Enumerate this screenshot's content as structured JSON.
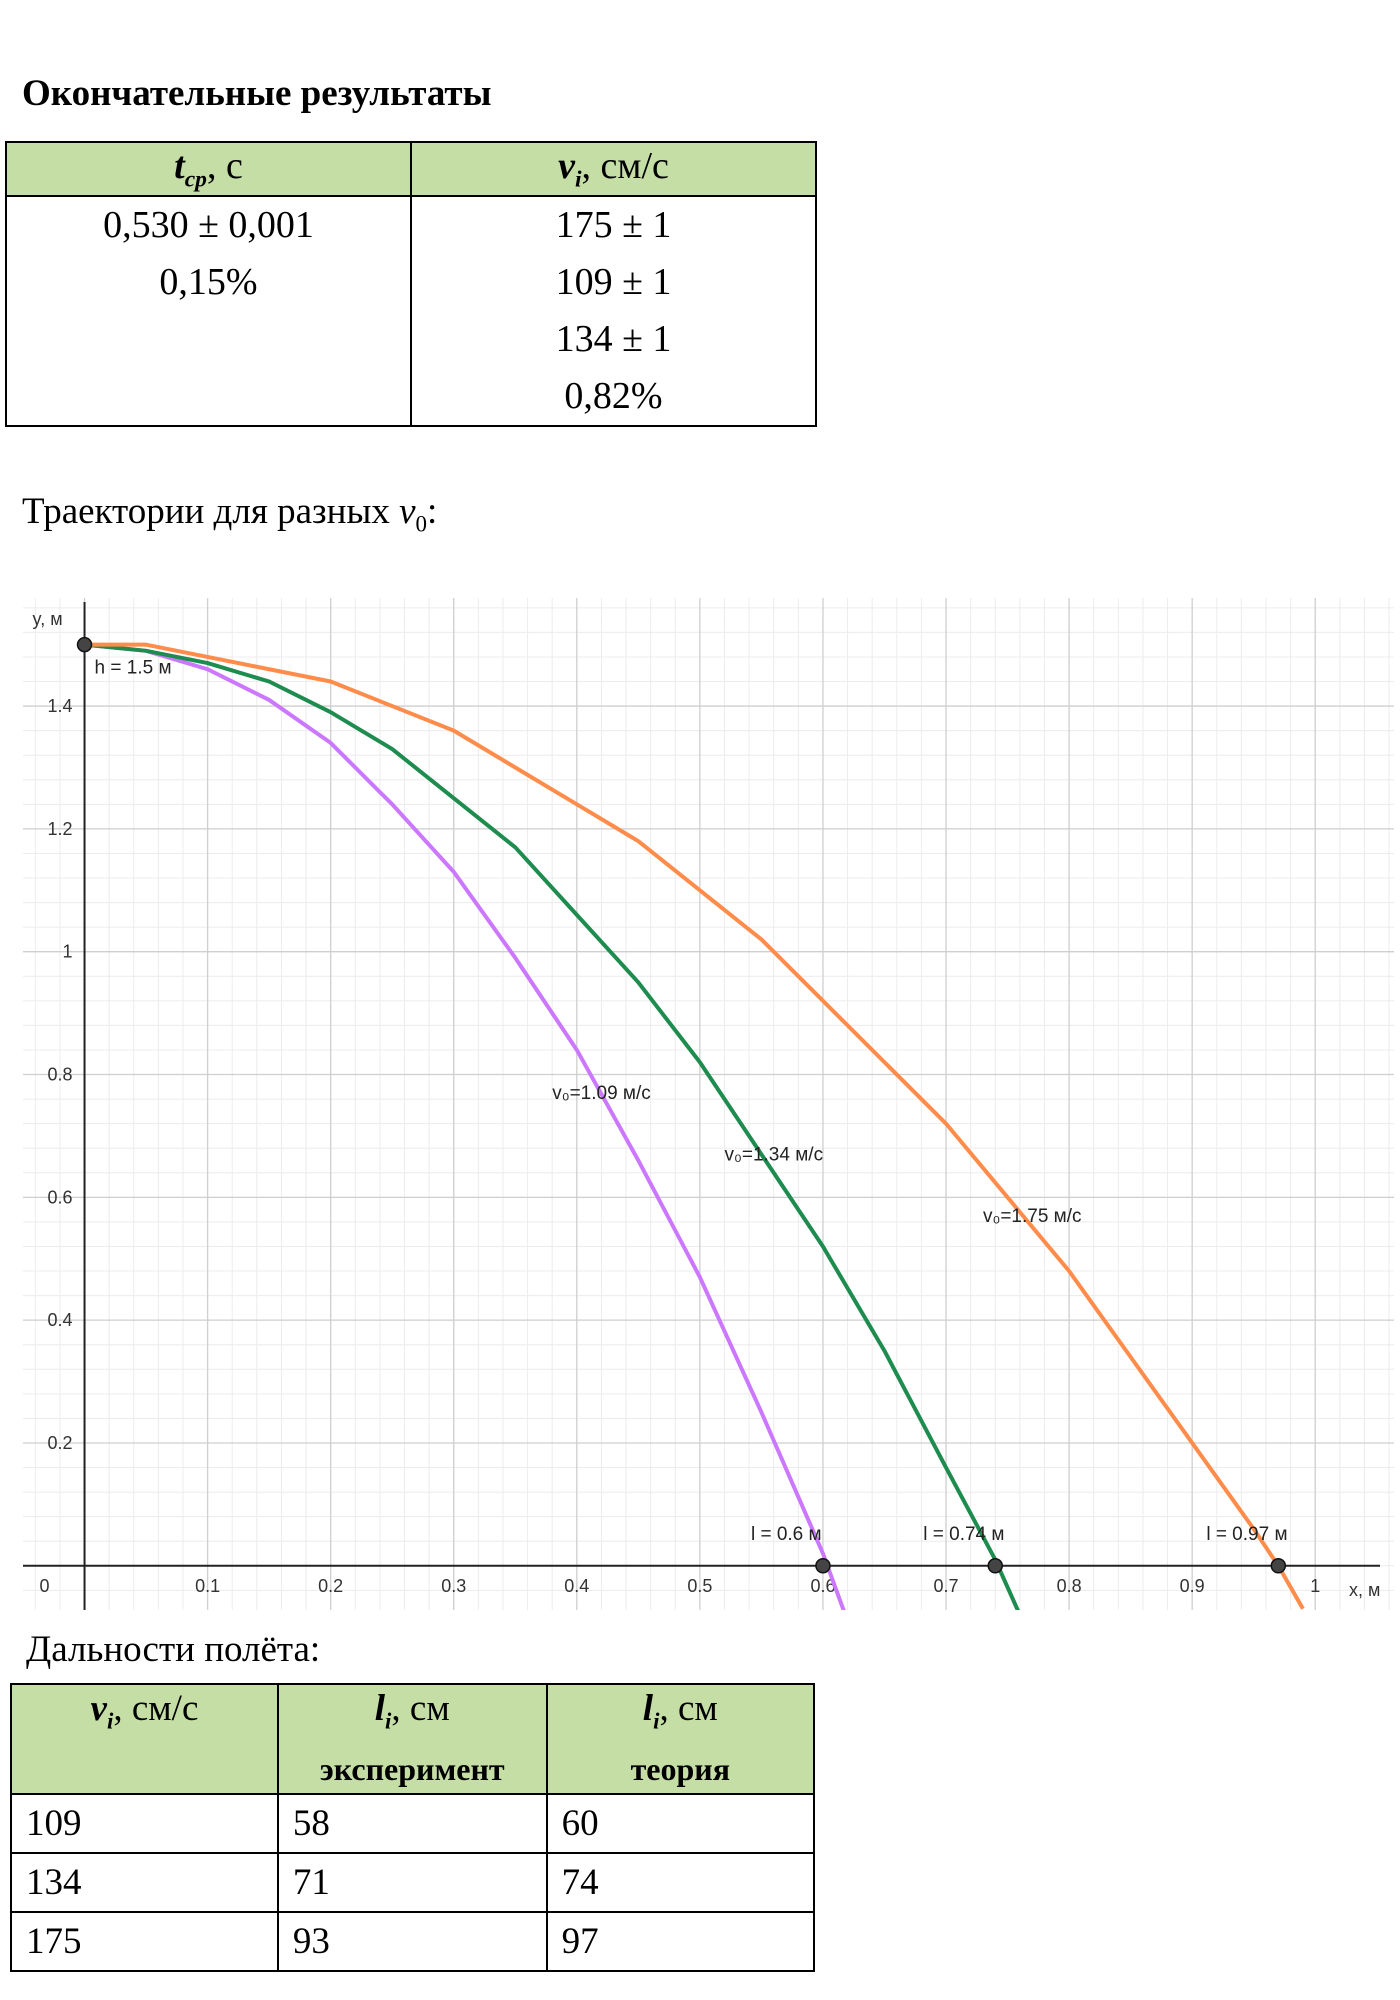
{
  "heading": "Окончательные результаты",
  "table1": {
    "header": [
      {
        "symbol": "t",
        "sub": "cp",
        "unit": ", с"
      },
      {
        "symbol": "v",
        "sub": "i",
        "unit": ", см/с"
      }
    ],
    "columns": [
      [
        "0,530 ± 0,001",
        "0,15%"
      ],
      [
        "175 ± 1",
        "109 ± 1",
        "134 ± 1",
        "0,82%"
      ]
    ]
  },
  "trajectories_caption": {
    "text": "Траектории для разных ",
    "symbol": "v",
    "sub": "0",
    "end": ":"
  },
  "chart_data": {
    "type": "line",
    "x_label": "x, м",
    "y_label": "y, м",
    "xlim": [
      -0.05,
      1.064
    ],
    "ylim": [
      -0.072,
      1.576
    ],
    "xticks": [
      0,
      0.1,
      0.2,
      0.3,
      0.4,
      0.5,
      0.6,
      0.7,
      0.8,
      0.9,
      1
    ],
    "yticks": [
      0.2,
      0.4,
      0.6,
      0.8,
      1,
      1.2,
      1.4
    ],
    "grid": true,
    "minor_grid_divisions": 5,
    "series": [
      {
        "name": "v₀=1.09 м/с",
        "color": "#cc77ff",
        "x": [
          0,
          0.05,
          0.1,
          0.15,
          0.2,
          0.25,
          0.3,
          0.35,
          0.4,
          0.45,
          0.5,
          0.55,
          0.6,
          0.62
        ],
        "values": [
          1.5,
          1.49,
          1.46,
          1.41,
          1.34,
          1.24,
          1.13,
          0.99,
          0.84,
          0.66,
          0.47,
          0.25,
          0.02,
          -0.09
        ]
      },
      {
        "name": "v₀=1.34 м/с",
        "color": "#1e8c4e",
        "x": [
          0,
          0.05,
          0.1,
          0.15,
          0.2,
          0.25,
          0.3,
          0.35,
          0.4,
          0.45,
          0.5,
          0.55,
          0.6,
          0.65,
          0.7,
          0.74,
          0.76
        ],
        "values": [
          1.5,
          1.49,
          1.47,
          1.44,
          1.39,
          1.33,
          1.25,
          1.17,
          1.06,
          0.95,
          0.82,
          0.67,
          0.52,
          0.35,
          0.16,
          0.01,
          -0.08
        ]
      },
      {
        "name": "v₀=1.75 м/с",
        "color": "#ff8c4a",
        "x": [
          0,
          0.05,
          0.1,
          0.15,
          0.2,
          0.25,
          0.3,
          0.35,
          0.4,
          0.45,
          0.5,
          0.55,
          0.6,
          0.65,
          0.7,
          0.75,
          0.8,
          0.85,
          0.9,
          0.95,
          0.97,
          0.99
        ],
        "values": [
          1.5,
          1.5,
          1.48,
          1.46,
          1.44,
          1.4,
          1.36,
          1.3,
          1.24,
          1.18,
          1.1,
          1.02,
          0.92,
          0.82,
          0.72,
          0.6,
          0.48,
          0.34,
          0.2,
          0.06,
          0,
          -0.07
        ]
      }
    ],
    "points": [
      {
        "x": 0,
        "y": 1.5,
        "label": "h = 1.5 м"
      },
      {
        "x": 0.6,
        "y": 0,
        "label": "l = 0.6 м"
      },
      {
        "x": 0.74,
        "y": 0,
        "label": "l = 0.74 м"
      },
      {
        "x": 0.97,
        "y": 0,
        "label": "l = 0.97 м"
      }
    ]
  },
  "range_caption": "Дальности полёта:",
  "table2": {
    "header": [
      {
        "symbol": "v",
        "sub": "i",
        "unit": ", см/с"
      },
      {
        "symbol": "l",
        "sub": "i",
        "unit": ", см",
        "note": "эксперимент"
      },
      {
        "symbol": "l",
        "sub": "i",
        "unit": ", см",
        "note": "теория"
      }
    ],
    "rows": [
      [
        109,
        58,
        60
      ],
      [
        134,
        71,
        74
      ],
      [
        175,
        93,
        97
      ]
    ]
  }
}
